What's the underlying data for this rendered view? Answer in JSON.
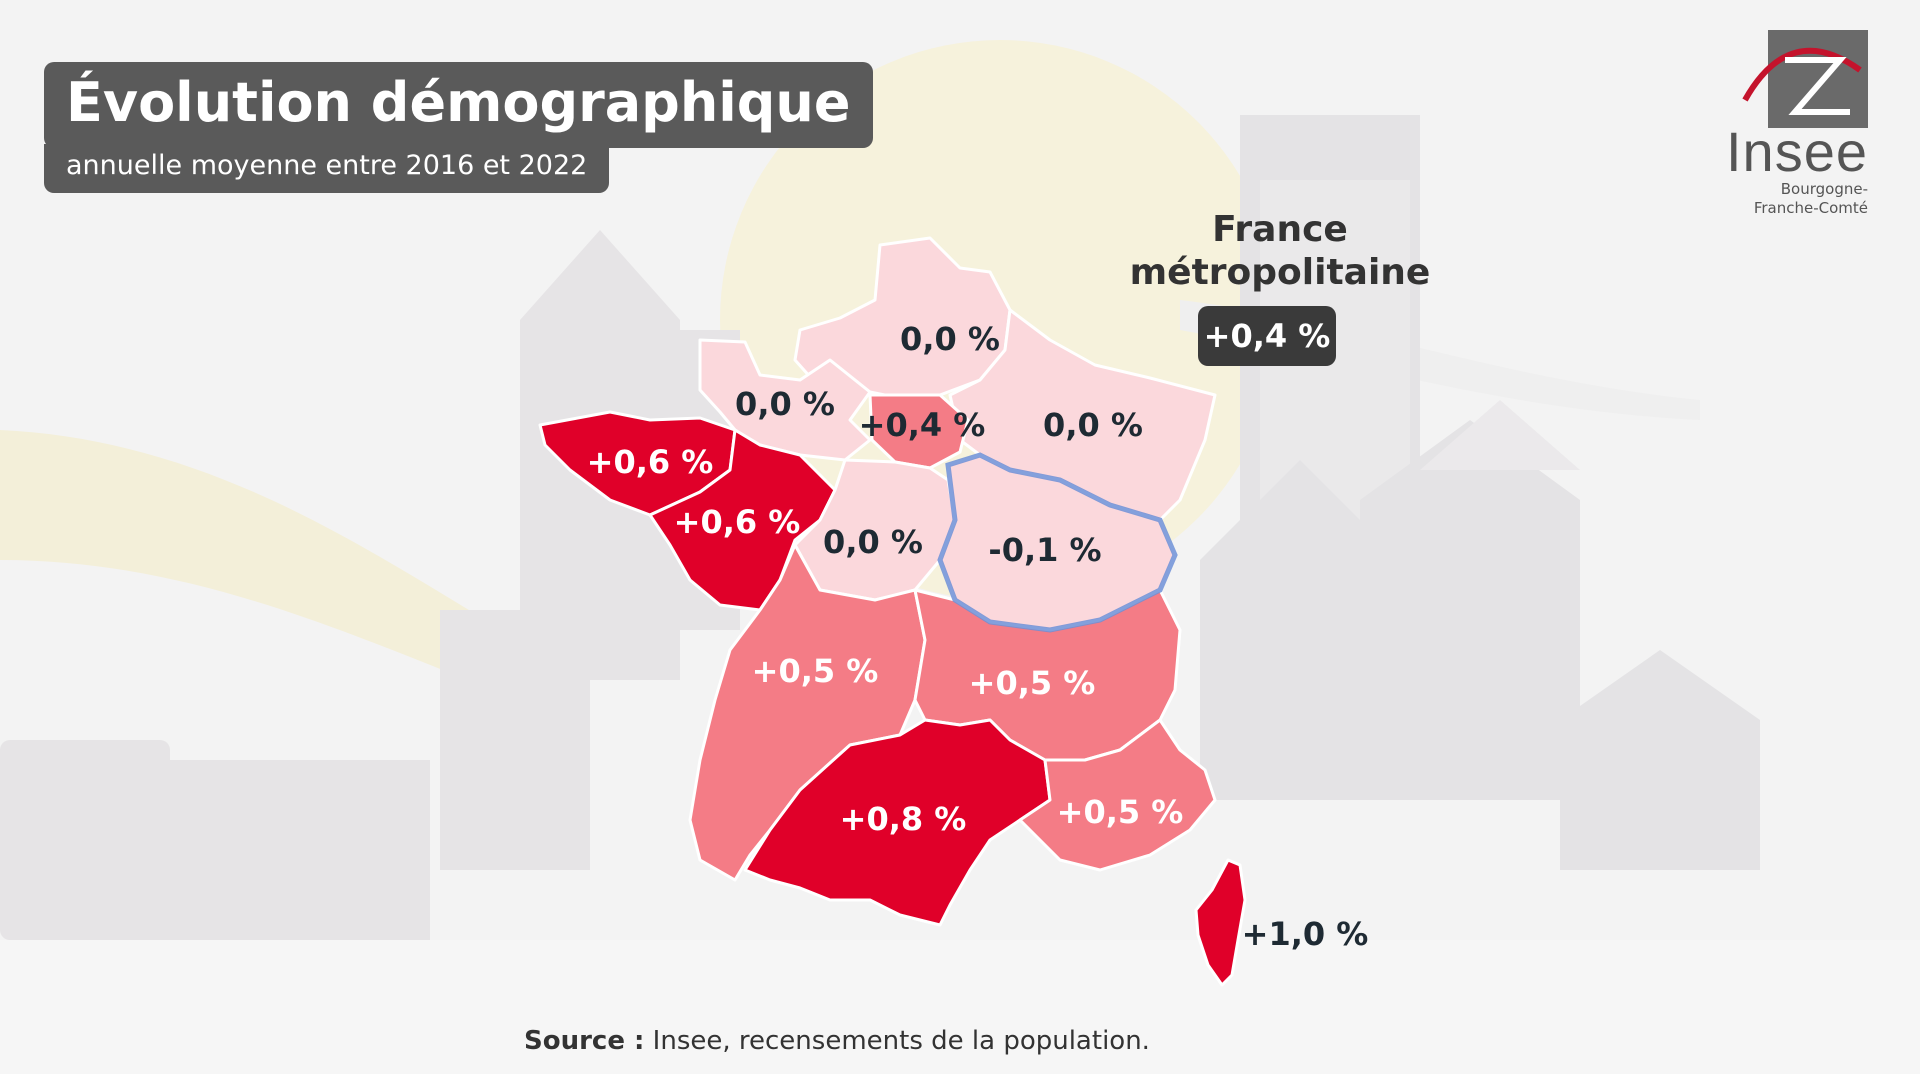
{
  "title": "Évolution démographique",
  "subtitle": "annuelle moyenne entre 2016 et 2022",
  "logo": {
    "name": "Insee",
    "region_line1": "Bourgogne-",
    "region_line2": "Franche-Comté"
  },
  "national": {
    "label_line1": "France",
    "label_line2": "métropolitaine",
    "value": "+0,4 %"
  },
  "source": {
    "label": "Source :",
    "text": " Insee, recensements de la population."
  },
  "colors": {
    "high": "#e00029",
    "medium": "#f47c86",
    "low": "#fbd8dc",
    "highlight_outline": "#6d8fd6",
    "label_dark": "#1e2a33",
    "label_light": "#ffffff"
  },
  "regions": [
    {
      "id": "hauts-de-france",
      "value": "0,0 %"
    },
    {
      "id": "normandie",
      "value": "0,0 %"
    },
    {
      "id": "ile-de-france",
      "value": "+0,4 %"
    },
    {
      "id": "grand-est",
      "value": "0,0 %"
    },
    {
      "id": "bretagne",
      "value": "+0,6 %"
    },
    {
      "id": "pays-de-la-loire",
      "value": "+0,6 %"
    },
    {
      "id": "centre-val-de-loire",
      "value": "0,0 %"
    },
    {
      "id": "bourgogne-franche-comte",
      "value": "-0,1 %"
    },
    {
      "id": "nouvelle-aquitaine",
      "value": "+0,5 %"
    },
    {
      "id": "auvergne-rhone-alpes",
      "value": "+0,5 %"
    },
    {
      "id": "occitanie",
      "value": "+0,8 %"
    },
    {
      "id": "provence-alpes-cote-d-azur",
      "value": "+0,5 %"
    },
    {
      "id": "corse",
      "value": "+1,0 %"
    }
  ]
}
